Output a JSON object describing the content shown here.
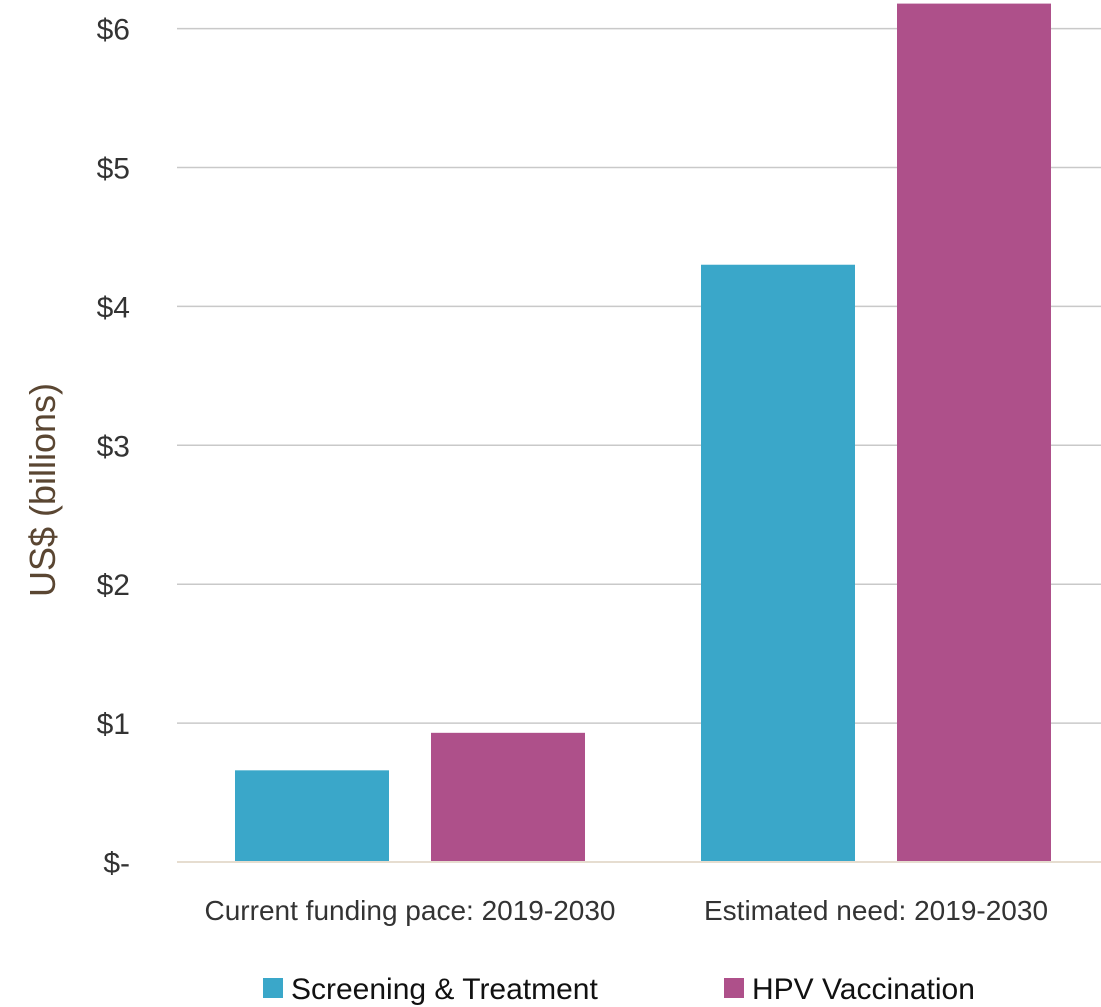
{
  "chart_data": {
    "type": "bar",
    "title": "",
    "ylabel": "US$ (billions)",
    "xlabel": "",
    "categories": [
      "Current funding pace: 2019-2030",
      "Estimated need: 2019-2030"
    ],
    "series": [
      {
        "name": "Screening & Treatment",
        "color": "#3aa7c9",
        "values": [
          0.66,
          4.3
        ]
      },
      {
        "name": "HPV Vaccination",
        "color": "#ae508a",
        "values": [
          0.93,
          6.18
        ]
      }
    ],
    "ylim": [
      0,
      6.2
    ],
    "yticks": [
      {
        "value": 0,
        "label": "$-"
      },
      {
        "value": 1,
        "label": "$1"
      },
      {
        "value": 2,
        "label": "$2"
      },
      {
        "value": 3,
        "label": "$3"
      },
      {
        "value": 4,
        "label": "$4"
      },
      {
        "value": 5,
        "label": "$5"
      },
      {
        "value": 6,
        "label": "$6"
      }
    ],
    "grid": true,
    "legend_position": "bottom"
  }
}
